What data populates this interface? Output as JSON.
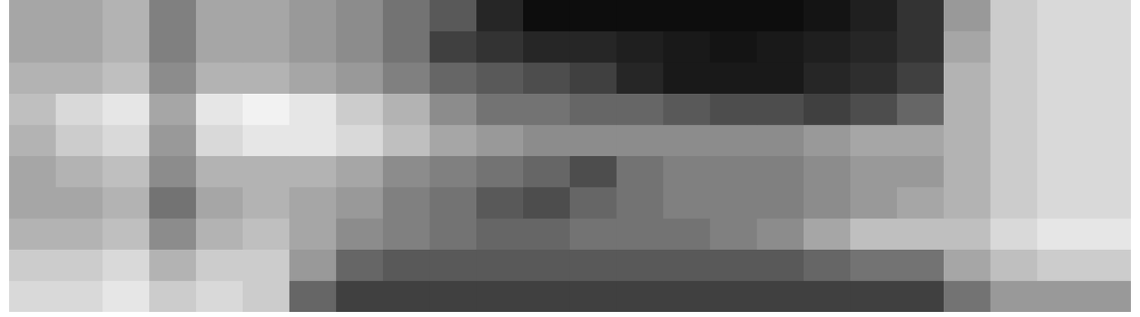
{
  "chart_data": {
    "type": "heatmap",
    "zlim": [
      0,
      100
    ],
    "tick_labels": false,
    "cells": [
      [
        35,
        35,
        30,
        50,
        35,
        35,
        40,
        45,
        55,
        65,
        85,
        95,
        95,
        95,
        95,
        95,
        95,
        92,
        88,
        80,
        40,
        20,
        15,
        15
      ],
      [
        35,
        35,
        30,
        50,
        35,
        35,
        40,
        45,
        55,
        75,
        80,
        85,
        85,
        88,
        90,
        92,
        90,
        88,
        85,
        80,
        35,
        20,
        15,
        15
      ],
      [
        30,
        30,
        25,
        45,
        30,
        30,
        35,
        40,
        50,
        60,
        65,
        70,
        75,
        85,
        90,
        90,
        90,
        85,
        82,
        75,
        30,
        20,
        15,
        15
      ],
      [
        25,
        15,
        10,
        35,
        10,
        5,
        10,
        20,
        30,
        45,
        55,
        55,
        60,
        60,
        65,
        70,
        70,
        75,
        70,
        60,
        30,
        20,
        15,
        15
      ],
      [
        30,
        20,
        15,
        40,
        15,
        10,
        10,
        15,
        25,
        35,
        40,
        45,
        45,
        45,
        45,
        45,
        45,
        40,
        35,
        35,
        30,
        20,
        15,
        15
      ],
      [
        35,
        30,
        25,
        45,
        30,
        30,
        30,
        35,
        45,
        50,
        55,
        60,
        70,
        55,
        50,
        50,
        50,
        45,
        40,
        40,
        30,
        20,
        15,
        15
      ],
      [
        35,
        35,
        30,
        55,
        35,
        30,
        35,
        40,
        50,
        55,
        65,
        70,
        60,
        55,
        50,
        50,
        50,
        45,
        40,
        35,
        30,
        20,
        15,
        15
      ],
      [
        30,
        30,
        25,
        45,
        30,
        25,
        35,
        45,
        50,
        55,
        60,
        60,
        55,
        55,
        55,
        50,
        45,
        35,
        25,
        25,
        25,
        15,
        10,
        10
      ],
      [
        20,
        20,
        15,
        30,
        20,
        20,
        40,
        60,
        65,
        65,
        65,
        65,
        65,
        65,
        65,
        65,
        65,
        60,
        55,
        55,
        35,
        25,
        20,
        20
      ],
      [
        15,
        15,
        10,
        20,
        15,
        20,
        60,
        75,
        75,
        75,
        75,
        75,
        75,
        75,
        75,
        75,
        75,
        75,
        75,
        75,
        55,
        40,
        40,
        40
      ]
    ]
  }
}
